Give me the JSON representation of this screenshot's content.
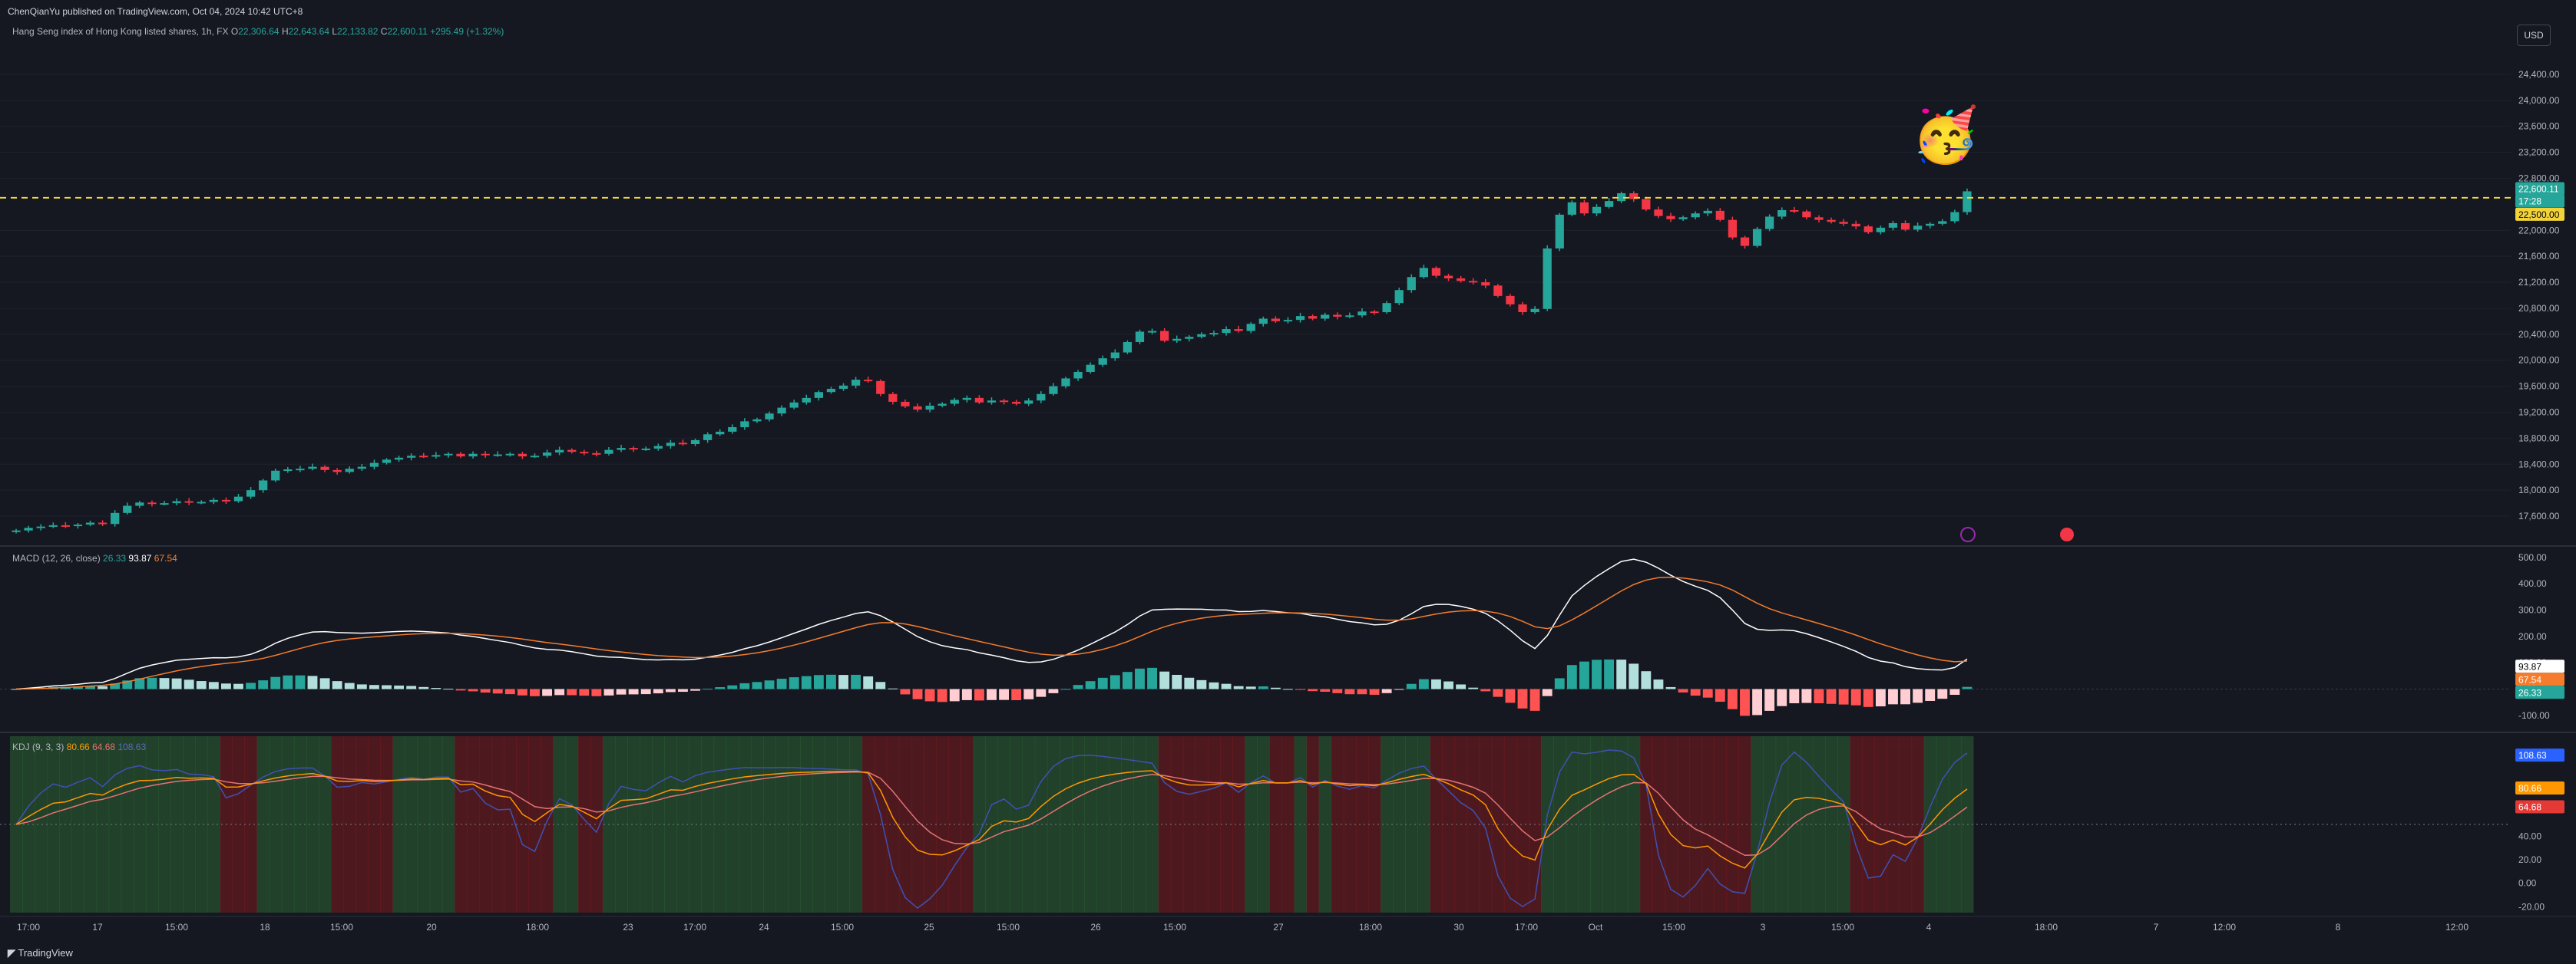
{
  "published": "ChenQianYu published on TradingView.com, Oct 04, 2024 10:42 UTC+8",
  "symbol": {
    "name": "Hang Seng index of Hong Kong listed shares, 1h, FX",
    "o_label": "O",
    "o": "22,306.64",
    "h_label": "H",
    "h": "22,643.64",
    "l_label": "L",
    "l": "22,133.82",
    "c_label": "C",
    "c": "22,600.11",
    "change": "+295.49 (+1.32%)"
  },
  "currency_button": "USD",
  "price_axis": {
    "ticks": [
      "24,400.00",
      "24,000.00",
      "23,600.00",
      "23,200.00",
      "22,800.00",
      "22,000.00",
      "21,600.00",
      "21,200.00",
      "20,800.00",
      "20,400.00",
      "20,000.00",
      "19,600.00",
      "19,200.00",
      "18,800.00",
      "18,400.00",
      "18,000.00",
      "17,600.00"
    ],
    "last_price": "22,600.11",
    "countdown": "17:28",
    "line_price": "22,500.00"
  },
  "macd": {
    "name": "MACD (12, 26, close)",
    "v1": "26.33",
    "v2": "93.87",
    "v3": "67.54",
    "ticks": [
      "500.00",
      "400.00",
      "300.00",
      "200.00",
      "100.00",
      "0.00",
      "-100.00"
    ]
  },
  "kdj": {
    "name": "KDJ (9, 3, 3)",
    "v1": "80.66",
    "v2": "64.68",
    "v3": "108.63",
    "ticks": [
      "40.00",
      "20.00",
      "0.00",
      "-20.00"
    ]
  },
  "time_axis": [
    "17:00",
    "17",
    "15:00",
    "18",
    "15:00",
    "20",
    "18:00",
    "23",
    "17:00",
    "24",
    "15:00",
    "25",
    "15:00",
    "26",
    "15:00",
    "27",
    "18:00",
    "30",
    "17:00",
    "Oct",
    "15:00",
    "3",
    "15:00",
    "4",
    "18:00",
    "7",
    "12:00",
    "8",
    "12:00"
  ],
  "brand": "TradingView",
  "colors": {
    "bg": "#151821",
    "up": "#26a69a",
    "down": "#f23645",
    "macd_line": "#ffffff",
    "signal_line": "#f57c2c",
    "yellow": "#f2d43a",
    "k_line": "#ff9800",
    "d_line": "#e57373",
    "j_line": "#3f51b5"
  },
  "chart_data": {
    "type": "candlestick",
    "closes": [
      17380,
      17420,
      17440,
      17460,
      17450,
      17470,
      17500,
      17480,
      17650,
      17760,
      17810,
      17790,
      17800,
      17830,
      17810,
      17820,
      17850,
      17830,
      17900,
      18000,
      18150,
      18300,
      18320,
      18330,
      18360,
      18310,
      18280,
      18330,
      18360,
      18420,
      18470,
      18500,
      18530,
      18520,
      18540,
      18560,
      18520,
      18560,
      18540,
      18550,
      18560,
      18520,
      18530,
      18580,
      18620,
      18590,
      18570,
      18560,
      18620,
      18650,
      18630,
      18640,
      18680,
      18730,
      18710,
      18770,
      18860,
      18900,
      18970,
      19060,
      19090,
      19180,
      19270,
      19350,
      19420,
      19510,
      19560,
      19610,
      19700,
      19680,
      19480,
      19360,
      19290,
      19240,
      19300,
      19330,
      19390,
      19420,
      19350,
      19380,
      19360,
      19330,
      19380,
      19480,
      19600,
      19720,
      19820,
      19930,
      20030,
      20120,
      20280,
      20440,
      20450,
      20300,
      20330,
      20360,
      20400,
      20420,
      20480,
      20450,
      20560,
      20640,
      20600,
      20620,
      20680,
      20640,
      20700,
      20670,
      20690,
      20750,
      20740,
      20880,
      21080,
      21280,
      21420,
      21300,
      21260,
      21220,
      21200,
      21150,
      20990,
      20860,
      20740,
      20790,
      21720,
      22240,
      22430,
      22260,
      22360,
      22450,
      22570,
      22480,
      22320,
      22220,
      22170,
      22200,
      22260,
      22300,
      22160,
      21890,
      21760,
      22020,
      22210,
      22310,
      22290,
      22200,
      22160,
      22130,
      22100,
      22060,
      21970,
      22040,
      22110,
      22010,
      22070,
      22100,
      22140,
      22280,
      22600
    ]
  }
}
